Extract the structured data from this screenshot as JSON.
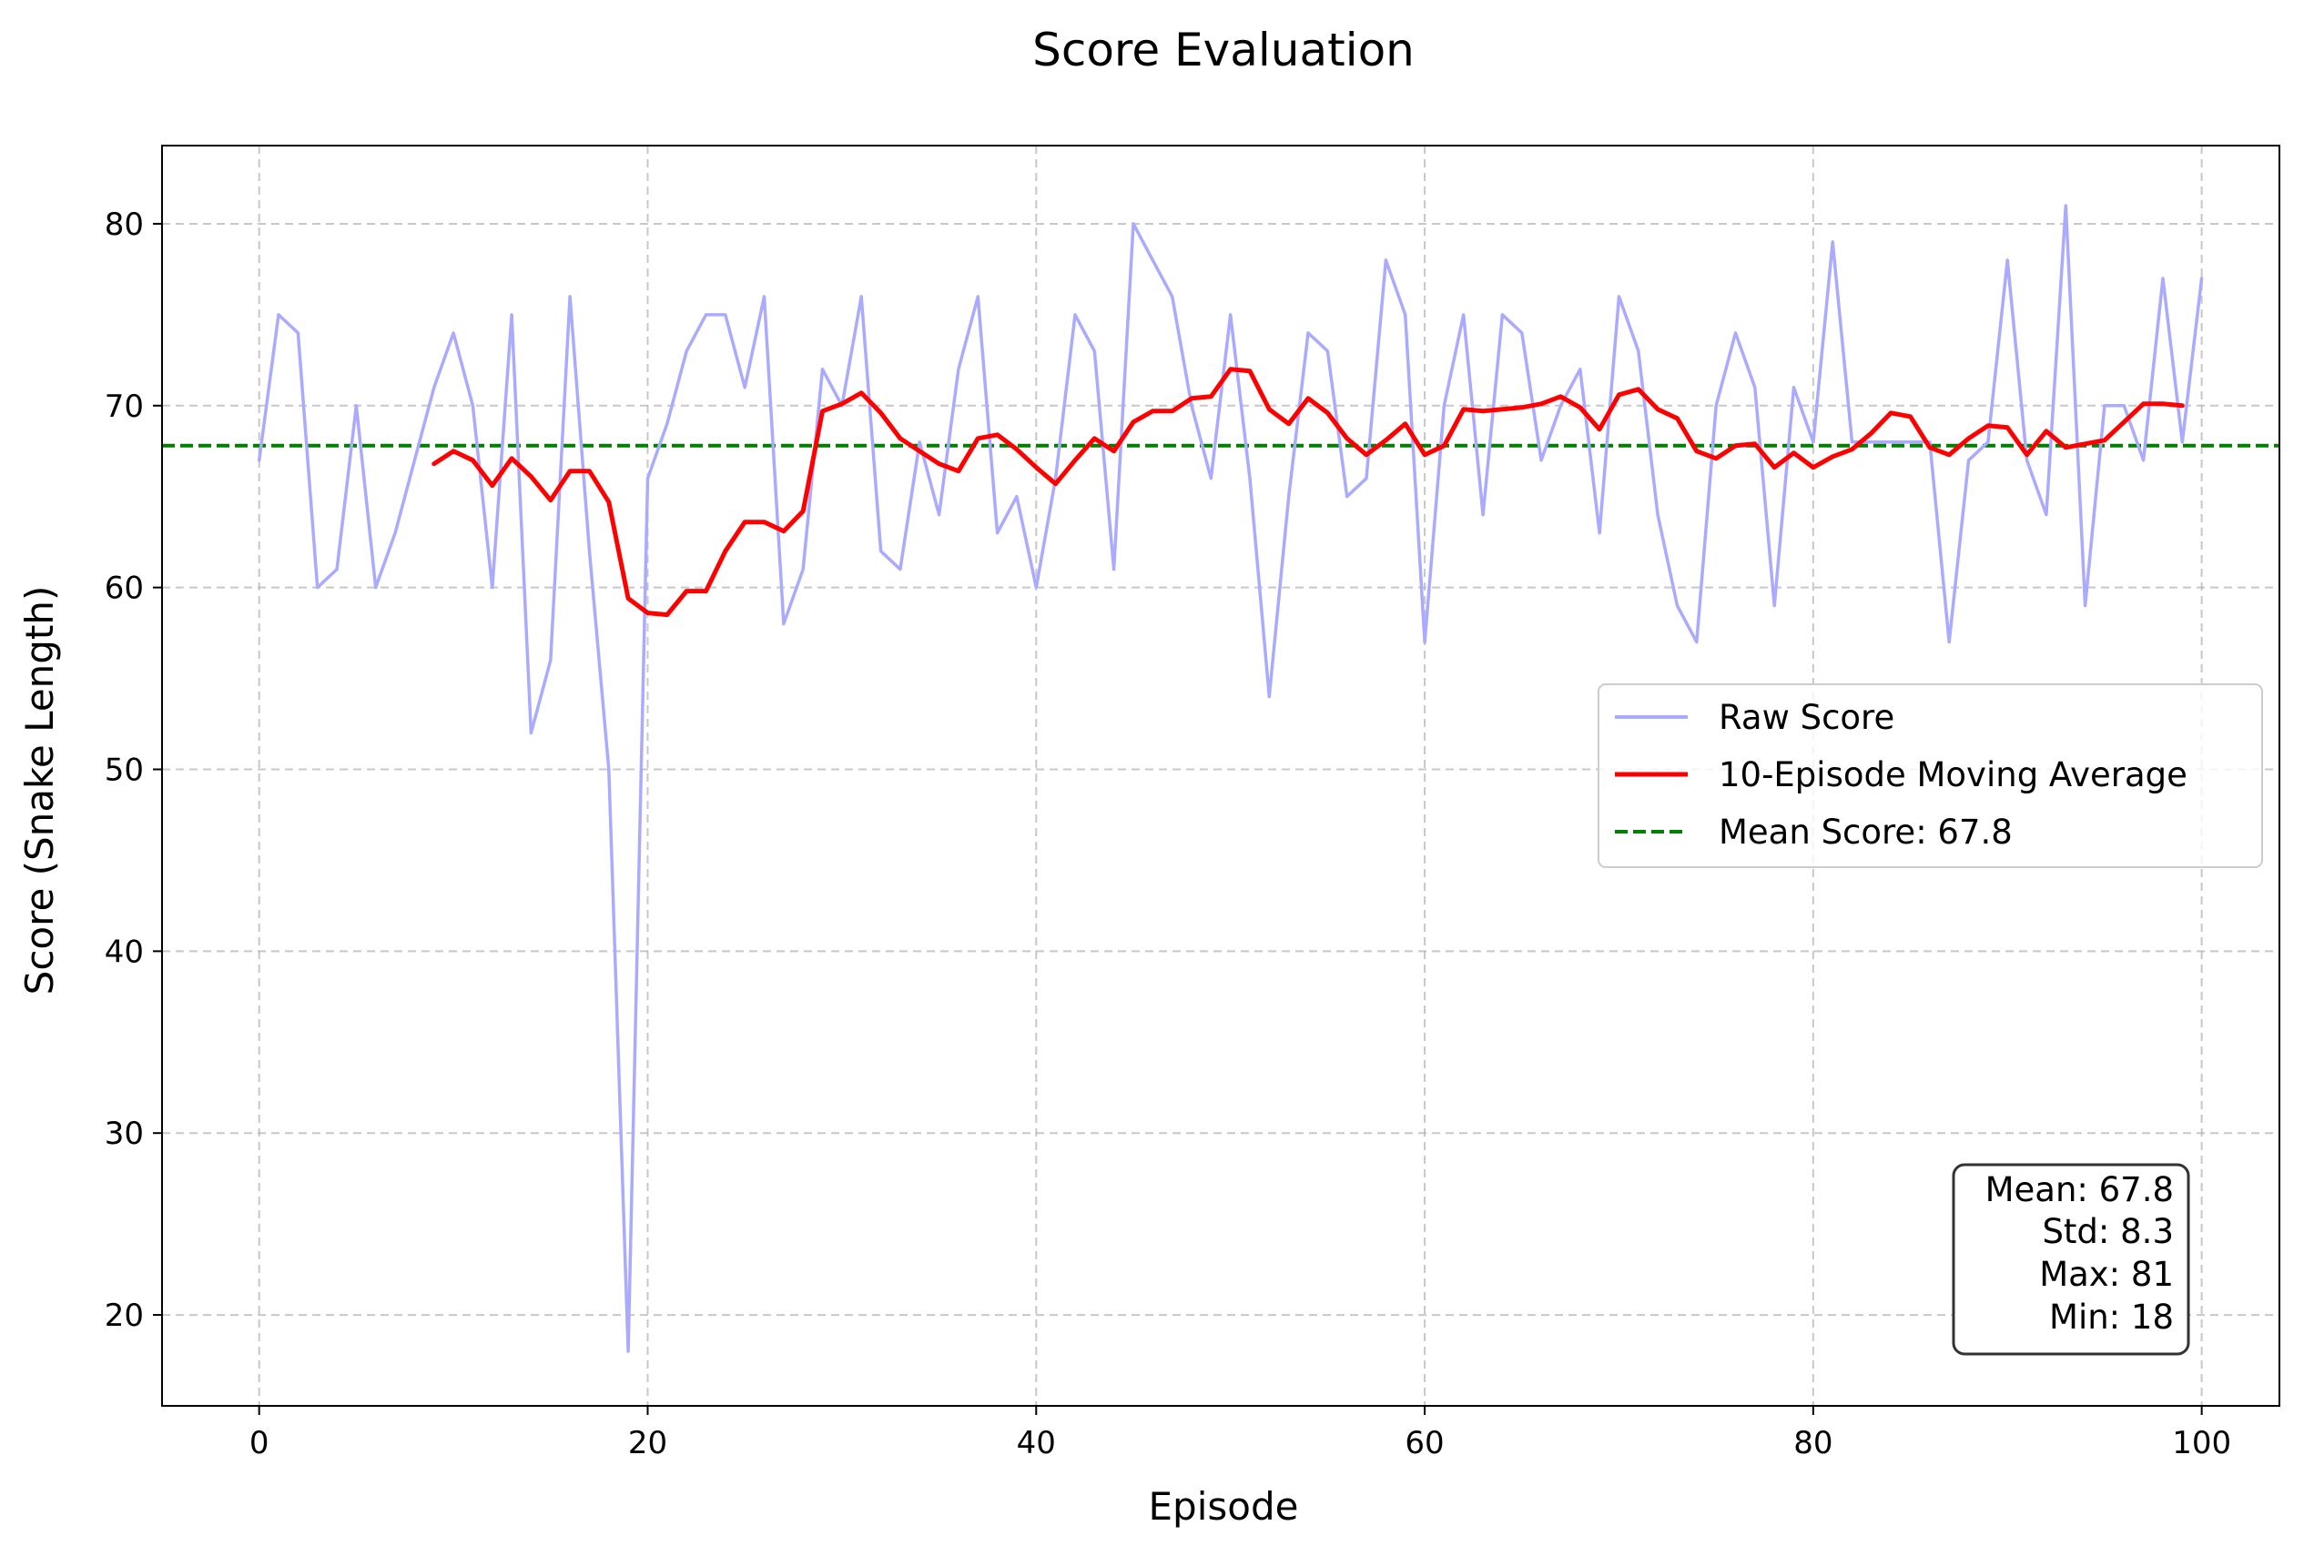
{
  "chart_data": {
    "type": "line",
    "title": "Score Evaluation",
    "xlabel": "Episode",
    "ylabel": "Score (Snake Length)",
    "xlim": [
      -5,
      104
    ],
    "ylim": [
      15,
      84.3
    ],
    "xticks": [
      0,
      20,
      40,
      60,
      80,
      100
    ],
    "yticks": [
      20,
      30,
      40,
      50,
      60,
      70,
      80
    ],
    "grid": true,
    "legend_position": "center-right",
    "series": [
      {
        "name": "Raw Score",
        "color": "#aaaaff",
        "style": "solid",
        "x_start": 0,
        "values": [
          67,
          75,
          74,
          60,
          61,
          70,
          60,
          63,
          67,
          71,
          74,
          70,
          60,
          75,
          52,
          56,
          76,
          62,
          50,
          18,
          66,
          69,
          73,
          75,
          75,
          71,
          76,
          58,
          61,
          72,
          70,
          76,
          62,
          61,
          68,
          64,
          72,
          76,
          63,
          65,
          60,
          66,
          75,
          73,
          61,
          80,
          78,
          76,
          70,
          66,
          75,
          66,
          54,
          65,
          74,
          73,
          65,
          66,
          78,
          75,
          57,
          70,
          75,
          64,
          75,
          74,
          67,
          70,
          72,
          63,
          76,
          73,
          64,
          59,
          57,
          70,
          74,
          71,
          59,
          71,
          68,
          79,
          68,
          68,
          68,
          68,
          68,
          57,
          67,
          68,
          78,
          67,
          64,
          81,
          59,
          70,
          70,
          67,
          77,
          68,
          77
        ]
      },
      {
        "name": "10-Episode Moving Average",
        "color": "#ff0000",
        "style": "solid",
        "x_start": 9,
        "values": [
          66.8,
          67.5,
          67.0,
          65.6,
          67.1,
          66.1,
          64.8,
          66.4,
          66.4,
          64.7,
          59.4,
          58.6,
          58.5,
          59.8,
          59.8,
          62.0,
          63.6,
          63.6,
          63.1,
          64.2,
          69.7,
          70.1,
          70.7,
          69.6,
          68.2,
          67.5,
          66.8,
          66.4,
          68.2,
          68.4,
          67.6,
          66.6,
          65.7,
          67.0,
          68.2,
          67.5,
          69.1,
          69.7,
          69.7,
          70.4,
          70.5,
          72.0,
          71.9,
          69.8,
          69.0,
          70.4,
          69.6,
          68.2,
          67.3,
          68.1,
          69.0,
          67.3,
          67.8,
          69.8,
          69.7,
          69.8,
          69.9,
          70.1,
          70.5,
          69.9,
          68.7,
          70.6,
          70.9,
          69.8,
          69.3,
          67.5,
          67.1,
          67.8,
          67.9,
          66.6,
          67.4,
          66.6,
          67.2,
          67.6,
          68.5,
          69.6,
          69.4,
          67.7,
          67.3,
          68.2,
          68.9,
          68.8,
          67.3,
          68.6,
          67.7,
          67.9,
          68.1,
          69.1,
          70.1,
          70.1,
          70.0
        ]
      }
    ],
    "reference_line": {
      "name": "Mean Score: 67.8",
      "value": 67.8,
      "color": "#008000",
      "style": "dashed"
    },
    "stats_box": {
      "lines": [
        "Mean: 67.8",
        "Std: 8.3",
        "Max: 81",
        "Min: 18"
      ]
    }
  }
}
